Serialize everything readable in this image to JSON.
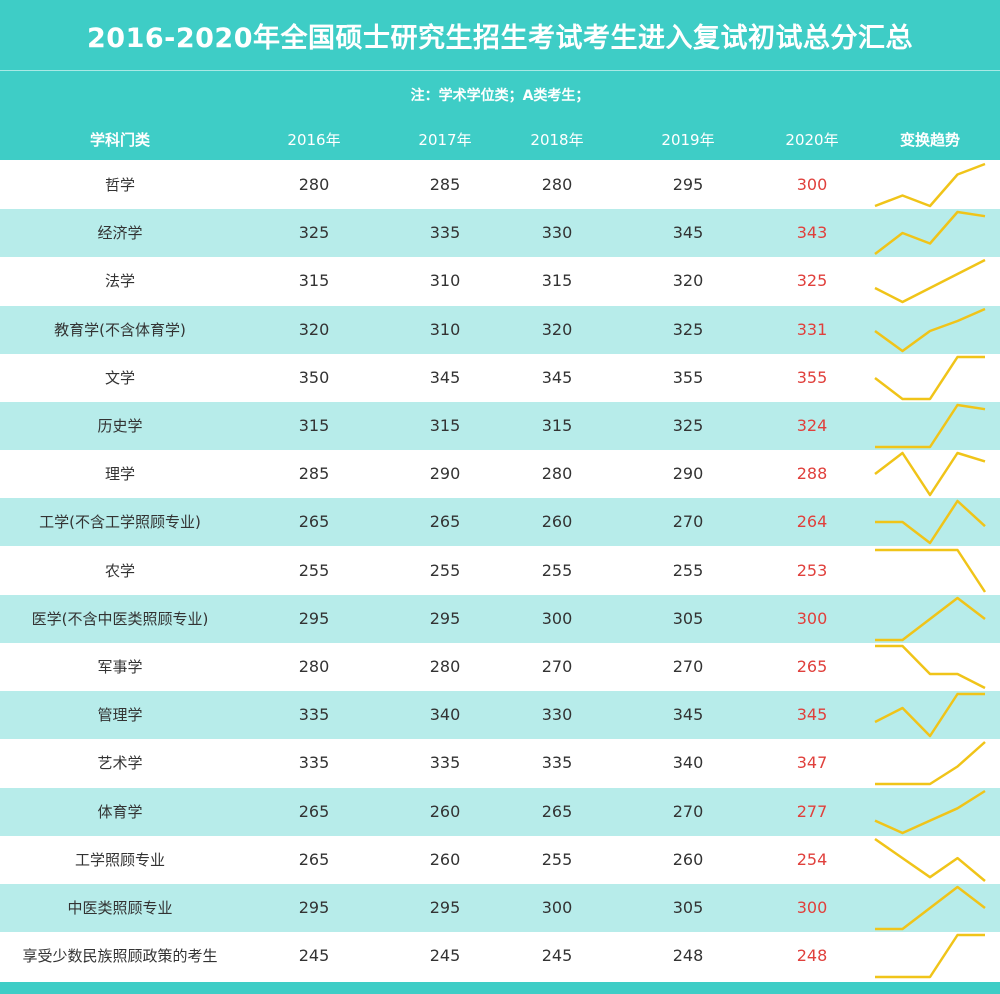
{
  "title": "2016-2020年全国硕士研究生招生考试考生进入复试初试总分汇总",
  "note": "注：学术学位类；A类考生；",
  "columns": [
    "学科门类",
    "2016年",
    "2017年",
    "2018年",
    "2019年",
    "2020年",
    "变换趋势"
  ],
  "colors": {
    "header": "#3ecdc6",
    "stripe": "#b7ecea",
    "highlight": "#e0403c",
    "trend": "#f0c419"
  },
  "rows": [
    {
      "name": "哲学",
      "values": [
        280,
        285,
        280,
        295,
        300
      ]
    },
    {
      "name": "经济学",
      "values": [
        325,
        335,
        330,
        345,
        343
      ]
    },
    {
      "name": "法学",
      "values": [
        315,
        310,
        315,
        320,
        325
      ]
    },
    {
      "name": "教育学(不含体育学)",
      "values": [
        320,
        310,
        320,
        325,
        331
      ]
    },
    {
      "name": "文学",
      "values": [
        350,
        345,
        345,
        355,
        355
      ]
    },
    {
      "name": "历史学",
      "values": [
        315,
        315,
        315,
        325,
        324
      ]
    },
    {
      "name": "理学",
      "values": [
        285,
        290,
        280,
        290,
        288
      ]
    },
    {
      "name": "工学(不含工学照顾专业)",
      "values": [
        265,
        265,
        260,
        270,
        264
      ]
    },
    {
      "name": "农学",
      "values": [
        255,
        255,
        255,
        255,
        253
      ]
    },
    {
      "name": "医学(不含中医类照顾专业)",
      "values": [
        295,
        295,
        300,
        305,
        300
      ]
    },
    {
      "name": "军事学",
      "values": [
        280,
        280,
        270,
        270,
        265
      ]
    },
    {
      "name": "管理学",
      "values": [
        335,
        340,
        330,
        345,
        345
      ]
    },
    {
      "name": "艺术学",
      "values": [
        335,
        335,
        335,
        340,
        347
      ]
    },
    {
      "name": "体育学",
      "values": [
        265,
        260,
        265,
        270,
        277
      ]
    },
    {
      "name": "工学照顾专业",
      "values": [
        265,
        260,
        255,
        260,
        254
      ]
    },
    {
      "name": "中医类照顾专业",
      "values": [
        295,
        295,
        300,
        305,
        300
      ]
    },
    {
      "name": "享受少数民族照顾政策的考生",
      "values": [
        245,
        245,
        245,
        248,
        248
      ]
    }
  ]
}
